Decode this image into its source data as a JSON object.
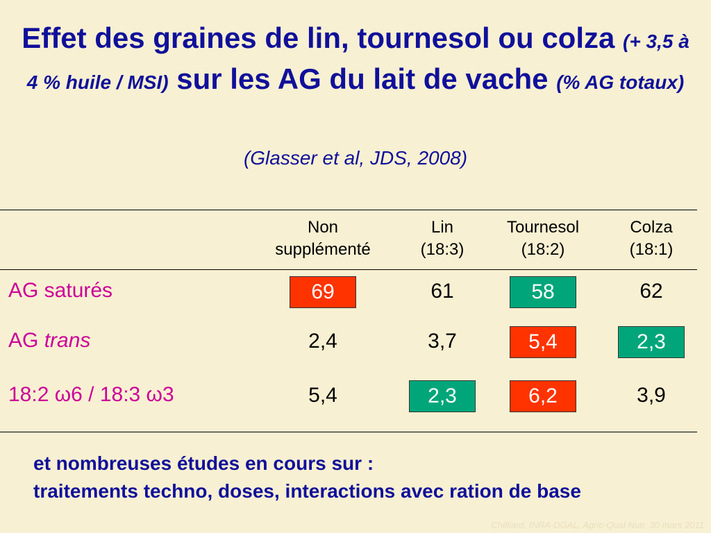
{
  "title": {
    "part1": "Effet des graines de lin, tournesol ou colza",
    "note1": "(+ 3,5 à 4 % huile / MSI)",
    "part2": "sur les AG du lait de vache",
    "note2": "(% AG totaux)",
    "source": "(Glasser et al, JDS, 2008)"
  },
  "table": {
    "header": [
      [
        "Non",
        "supplémenté"
      ],
      [
        "Lin",
        "(18:3)"
      ],
      [
        "Tournesol",
        "(18:2)"
      ],
      [
        "Colza",
        "(18:1)"
      ]
    ],
    "highlight_colors": {
      "red": "#ff3300",
      "green": "#00a67a"
    },
    "rows": [
      {
        "label": [
          "AG saturés"
        ],
        "cells": [
          {
            "text": "69",
            "highlight": "red"
          },
          {
            "text": "61"
          },
          {
            "text": "58",
            "highlight": "green"
          },
          {
            "text": "62"
          }
        ]
      },
      {
        "label": [
          "AG ",
          "trans"
        ],
        "cells": [
          {
            "text": "2,4"
          },
          {
            "text": "3,7"
          },
          {
            "text": "5,4",
            "highlight": "red"
          },
          {
            "text": "2,3",
            "highlight": "green"
          }
        ]
      },
      {
        "label": [
          "18:2 ω6 / 18:3 ω3"
        ],
        "cells": [
          {
            "text": "5,4"
          },
          {
            "text": "2,3",
            "highlight": "green"
          },
          {
            "text": "6,2",
            "highlight": "red"
          },
          {
            "text": "3,9"
          }
        ]
      }
    ]
  },
  "footer": {
    "lines": [
      "et nombreuses études en cours sur :",
      "traitements techno, doses, interactions avec ration de base"
    ]
  },
  "watermark": "Chilliard, INRA-DGAL, Agric-Qual Nutr, 30 mars 2011"
}
